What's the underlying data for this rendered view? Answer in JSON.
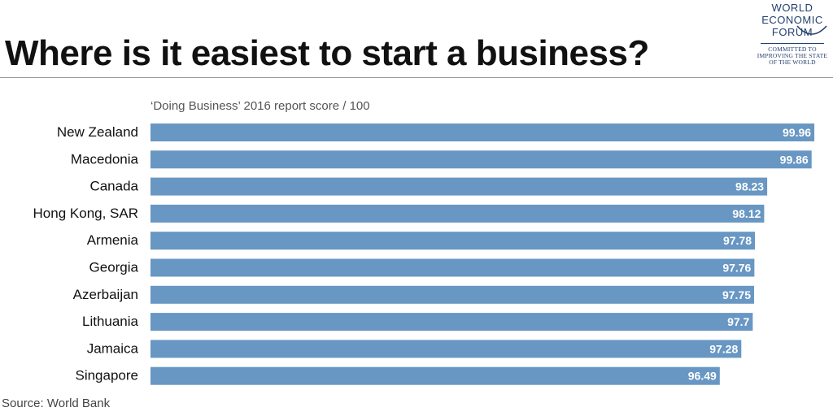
{
  "header": {
    "title": "Where is it easiest to start a business?",
    "logo": {
      "wordmark_lines": [
        "WORLD",
        "ECONOMIC",
        "FORUM"
      ],
      "tagline_lines": [
        "COMMITTED TO",
        "IMPROVING THE STATE",
        "OF THE WORLD"
      ]
    }
  },
  "footer": {
    "source": "Source: World Bank"
  },
  "colors": {
    "bar": "#6897c3",
    "label": "#111111",
    "value": "#ffffff"
  },
  "chart_data": {
    "type": "bar",
    "orientation": "horizontal",
    "subtitle": "‘Doing Business’ 2016 report score / 100",
    "categories": [
      "New Zealand",
      "Macedonia",
      "Canada",
      "Hong Kong, SAR",
      "Armenia",
      "Georgia",
      "Azerbaijan",
      "Lithuania",
      "Jamaica",
      "Singapore"
    ],
    "values": [
      99.96,
      99.86,
      98.23,
      98.12,
      97.78,
      97.76,
      97.75,
      97.7,
      97.28,
      96.49
    ],
    "value_labels": [
      "99.96",
      "99.86",
      "98.23",
      "98.12",
      "97.78",
      "97.76",
      "97.75",
      "97.7",
      "97.28",
      "96.49"
    ],
    "xlim": [
      75.6,
      100
    ],
    "grid": false,
    "legend": "none"
  }
}
